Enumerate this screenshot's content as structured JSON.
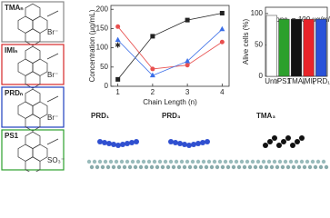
{
  "structures": [
    {
      "label": "TMAₙ",
      "ion": "Br⁻",
      "color": "#888888"
    },
    {
      "label": "IMIₙ",
      "ion": "Br⁻",
      "color": "#d62728"
    },
    {
      "label": "PRDₙ",
      "ion": "Br⁻",
      "color": "#1f3fbf"
    },
    {
      "label": "PS1",
      "ion": "SO₃⁻",
      "color": "#2ca02c"
    }
  ],
  "renderings": [
    {
      "label": "PRD₁"
    },
    {
      "label": "PRD₃"
    },
    {
      "label": "TMA₃"
    }
  ],
  "chart_data": [
    {
      "type": "line",
      "xlabel": "Chain Length (n)",
      "ylabel": "Concentration (μg/mL)",
      "x": [
        1,
        2,
        3,
        4
      ],
      "xlim": [
        0.8,
        4.2
      ],
      "xticks": [
        1,
        2,
        3,
        4
      ],
      "ylim": [
        0,
        210
      ],
      "yticks": [
        0,
        50,
        100,
        150,
        200
      ],
      "series": [
        {
          "color": "#222222",
          "marker": "square",
          "values": [
            18,
            130,
            172,
            190
          ]
        },
        {
          "color": "#e8504f",
          "marker": "circle",
          "values": [
            155,
            45,
            55,
            115
          ]
        },
        {
          "color": "#3a6ee8",
          "marker": "triangle",
          "values": [
            120,
            28,
            65,
            148
          ]
        },
        {
          "color": "#3aa84a",
          "marker": "star",
          "values": [
            105,
            null,
            null,
            null
          ]
        }
      ]
    },
    {
      "type": "bar",
      "ylabel": "Alive cells (%)",
      "annotation": "Conc. = 100 μg/ml",
      "categories": [
        "Untr",
        "PS1",
        "TMA₁",
        "IMI₁",
        "PRD₁"
      ],
      "values": [
        97,
        91,
        91,
        91,
        91
      ],
      "colors": [
        "#ffffff",
        "#2ca02c",
        "#111111",
        "#e8252a",
        "#2a52d9"
      ],
      "ylim": [
        0,
        110
      ],
      "yticks": [
        0,
        50,
        100
      ]
    }
  ]
}
